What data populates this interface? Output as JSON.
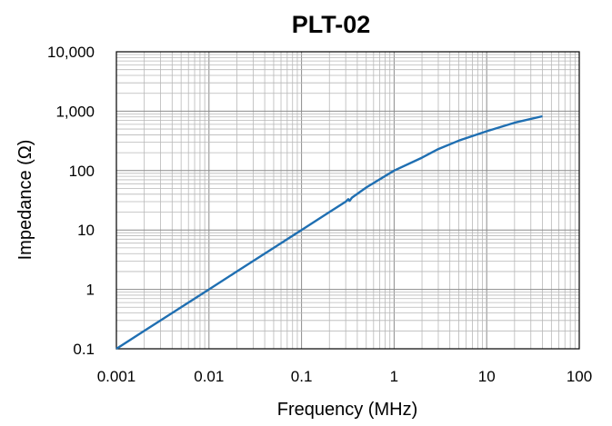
{
  "chart_data": {
    "type": "line",
    "title": "PLT-02",
    "xlabel": "Frequency (MHz)",
    "ylabel": "Impedance (Ω)",
    "x_scale": "log",
    "y_scale": "log",
    "xlim": [
      0.001,
      100
    ],
    "ylim": [
      0.1,
      10000
    ],
    "grid": true,
    "x_ticks": [
      0.001,
      0.01,
      0.1,
      1,
      10,
      100
    ],
    "x_tick_labels": [
      "0.001",
      "0.01",
      "0.1",
      "1",
      "10",
      "100"
    ],
    "y_ticks": [
      0.1,
      1,
      10,
      100,
      1000,
      10000
    ],
    "y_tick_labels": [
      "0.1",
      "1",
      "10",
      "100",
      "1,000",
      "10,000"
    ],
    "colors": {
      "line": "#1f6fb2",
      "grid": "#b8b8b8",
      "frame": "#000000"
    },
    "series": [
      {
        "name": "",
        "x": [
          0.001,
          0.002,
          0.005,
          0.01,
          0.02,
          0.05,
          0.1,
          0.2,
          0.3,
          0.32,
          0.33,
          0.35,
          0.5,
          1,
          2,
          3,
          5,
          10,
          20,
          40
        ],
        "y": [
          0.1,
          0.2,
          0.5,
          1.0,
          2.0,
          5.0,
          10,
          20,
          30,
          33,
          31,
          35,
          52,
          100,
          165,
          230,
          320,
          460,
          640,
          820
        ]
      }
    ]
  }
}
